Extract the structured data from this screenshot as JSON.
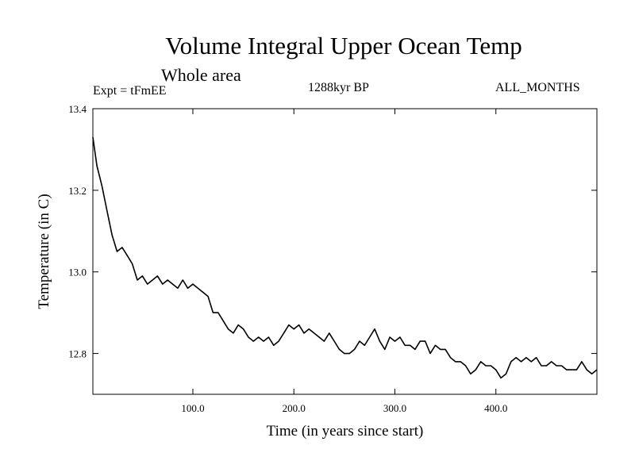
{
  "chart_data": {
    "type": "line",
    "title": "Volume Integral Upper Ocean Temp",
    "subtitle": "Whole area",
    "annotations": {
      "experiment": "Expt = tFmEE",
      "period": "1288kyr BP",
      "months": "ALL_MONTHS"
    },
    "xlabel": "Time (in years since start)",
    "ylabel": "Temperature (in C)",
    "xlim": [
      1,
      500
    ],
    "ylim": [
      12.7,
      13.4
    ],
    "xticks": [
      100,
      200,
      300,
      400
    ],
    "xtick_labels": [
      "100.0",
      "200.0",
      "300.0",
      "400.0"
    ],
    "yticks": [
      12.8,
      13.0,
      13.2,
      13.4
    ],
    "ytick_labels": [
      "12.8",
      "13.0",
      "13.2",
      "13.4"
    ],
    "grid": false,
    "series": [
      {
        "name": "Volume Integral Upper Ocean Temp",
        "color": "#000000",
        "x": [
          1,
          5,
          10,
          15,
          20,
          25,
          30,
          35,
          40,
          45,
          50,
          55,
          60,
          65,
          70,
          75,
          80,
          85,
          90,
          95,
          100,
          105,
          110,
          115,
          120,
          125,
          130,
          135,
          140,
          145,
          150,
          155,
          160,
          165,
          170,
          175,
          180,
          185,
          190,
          195,
          200,
          205,
          210,
          215,
          220,
          225,
          230,
          235,
          240,
          245,
          250,
          255,
          260,
          265,
          270,
          275,
          280,
          285,
          290,
          295,
          300,
          305,
          310,
          315,
          320,
          325,
          330,
          335,
          340,
          345,
          350,
          355,
          360,
          365,
          370,
          375,
          380,
          385,
          390,
          395,
          400,
          405,
          410,
          415,
          420,
          425,
          430,
          435,
          440,
          445,
          450,
          455,
          460,
          465,
          470,
          475,
          480,
          485,
          490,
          495,
          500
        ],
        "y": [
          13.33,
          13.26,
          13.21,
          13.15,
          13.09,
          13.05,
          13.06,
          13.04,
          13.02,
          12.98,
          12.99,
          12.97,
          12.98,
          12.99,
          12.97,
          12.98,
          12.97,
          12.96,
          12.98,
          12.96,
          12.97,
          12.96,
          12.95,
          12.94,
          12.9,
          12.9,
          12.88,
          12.86,
          12.85,
          12.87,
          12.86,
          12.84,
          12.83,
          12.84,
          12.83,
          12.84,
          12.82,
          12.83,
          12.85,
          12.87,
          12.86,
          12.87,
          12.85,
          12.86,
          12.85,
          12.84,
          12.83,
          12.85,
          12.83,
          12.81,
          12.8,
          12.8,
          12.81,
          12.83,
          12.82,
          12.84,
          12.86,
          12.83,
          12.81,
          12.84,
          12.83,
          12.84,
          12.82,
          12.82,
          12.81,
          12.83,
          12.83,
          12.8,
          12.82,
          12.81,
          12.81,
          12.79,
          12.78,
          12.78,
          12.77,
          12.75,
          12.76,
          12.78,
          12.77,
          12.77,
          12.76,
          12.74,
          12.75,
          12.78,
          12.79,
          12.78,
          12.79,
          12.78,
          12.79,
          12.77,
          12.77,
          12.78,
          12.77,
          12.77,
          12.76,
          12.76,
          12.76,
          12.78,
          12.76,
          12.75,
          12.76
        ]
      }
    ]
  }
}
